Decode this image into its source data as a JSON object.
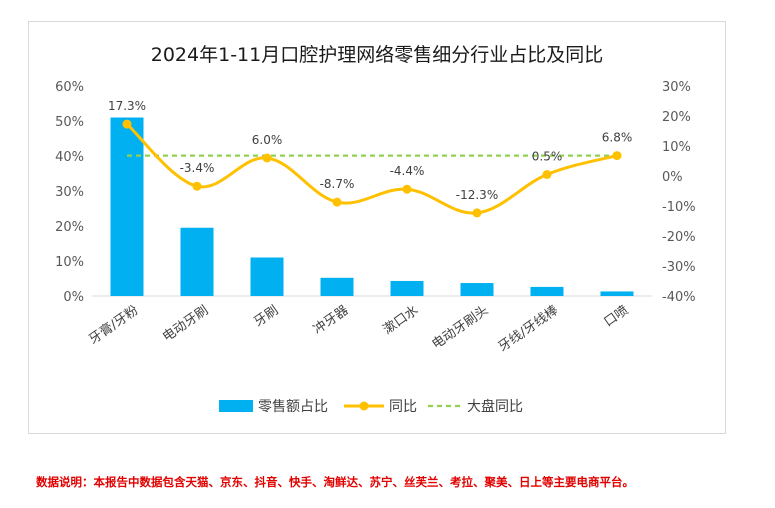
{
  "chart_data": {
    "type": "bar",
    "title": "2024年1-11月口腔护理网络零售细分行业占比及同比",
    "categories": [
      "牙膏/牙粉",
      "电动牙刷",
      "牙刷",
      "冲牙器",
      "漱口水",
      "电动牙刷头",
      "牙线/牙线棒",
      "口喷"
    ],
    "series": [
      {
        "name": "零售额占比",
        "type": "bar",
        "axis": "left",
        "color": "#00b0f0",
        "values": [
          51,
          19.5,
          11,
          5.2,
          4.3,
          3.7,
          2.6,
          1.3
        ]
      },
      {
        "name": "同比",
        "type": "line",
        "axis": "right",
        "color": "#ffc000",
        "values": [
          17.3,
          -3.4,
          6.0,
          -8.7,
          -4.4,
          -12.3,
          0.5,
          6.8
        ],
        "labels": [
          "17.3%",
          "-3.4%",
          "6.0%",
          "-8.7%",
          "-4.4%",
          "-12.3%",
          "0.5%",
          "6.8%"
        ]
      },
      {
        "name": "大盘同比",
        "type": "line",
        "axis": "right",
        "color": "#92d050",
        "dashed": true,
        "values": [
          6.8,
          6.8,
          6.8,
          6.8,
          6.8,
          6.8,
          6.8,
          6.8
        ]
      }
    ],
    "y_left": {
      "ylim": [
        0,
        60
      ],
      "ticks": [
        "0%",
        "10%",
        "20%",
        "30%",
        "40%",
        "50%",
        "60%"
      ]
    },
    "y_right": {
      "ylim": [
        -40,
        30
      ],
      "ticks": [
        "-40%",
        "-30%",
        "-20%",
        "-10%",
        "0%",
        "10%",
        "20%",
        "30%"
      ]
    },
    "legend": {
      "placement": "bottom",
      "items": [
        "零售额占比",
        "同比",
        "大盘同比"
      ]
    },
    "grid": false
  },
  "footnote": "数据说明：本报告中数据包含天猫、京东、抖音、快手、淘鲜达、苏宁、丝芙兰、考拉、聚美、日上等主要电商平台。"
}
